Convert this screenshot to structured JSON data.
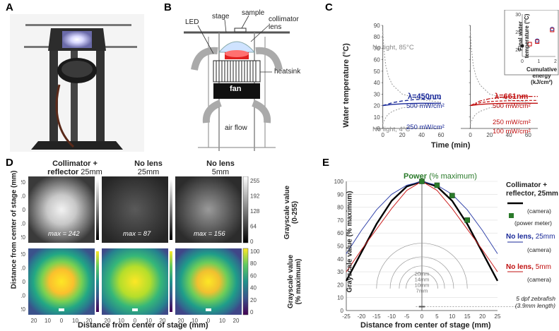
{
  "panels": {
    "A": "A",
    "B": "B",
    "C": "C",
    "D": "D",
    "E": "E"
  },
  "panelB": {
    "led": "LED",
    "stage": "stage",
    "sample": "sample",
    "collimator_l1": "collimator",
    "collimator_l2": "lens",
    "heatsink": "heatsink",
    "fan": "fan",
    "air_flow": "air flow"
  },
  "panelC": {
    "ylabel": "Water temperature (°C)",
    "xlabel": "Time (min)",
    "yticks": [
      "90",
      "80",
      "70",
      "60",
      "50",
      "40",
      "30",
      "20",
      "10",
      "0"
    ],
    "xticks": [
      "0",
      "20",
      "40",
      "60"
    ],
    "xticks_right": [
      "0",
      "20",
      "40",
      "60"
    ],
    "no_light_85": "No light, 85°C",
    "no_light_4": "No light, 4°C",
    "blue_lambda": "λ=450nm",
    "blue_500": "500 mW/cm²",
    "blue_250": "250 mW/cm²",
    "red_lambda": "λ=661nm",
    "red_500": "500 mW/cm²",
    "red_250": "250 mW/cm²",
    "red_100": "100 mW/cm²",
    "inset": {
      "ylabel_l1": "Final water",
      "ylabel_l2": "temperature (°C)",
      "xlabel_l1": "Cumulative",
      "xlabel_l2": "energy (kJ/cm²)",
      "yticks": [
        "30",
        "25",
        "20"
      ],
      "xticks": [
        "0",
        "1",
        "2"
      ]
    }
  },
  "panelD": {
    "col1_title_l1": "Collimator +",
    "col1_title_l2": "reflector",
    "col1_size": "25mm",
    "col2_title": "No lens",
    "col2_size": "25mm",
    "col3_title": "No lens",
    "col3_size": "5mm",
    "max1": "max = 242",
    "max2": "max = 87",
    "max3": "max = 156",
    "ylabel_l1": "Distance from center of stage (mm)",
    "xlabel": "Distance from center of stage (mm)",
    "yticks": [
      "20",
      "10",
      "0",
      "10",
      "20"
    ],
    "xticks": [
      "20",
      "10",
      "0",
      "10",
      "20"
    ],
    "cbar1_ticks": [
      "255",
      "192",
      "128",
      "64",
      "0"
    ],
    "cbar1_label_l1": "Grayscale value",
    "cbar1_label_l2": "(0-255)",
    "cbar2_ticks": [
      "100",
      "80",
      "60",
      "40",
      "20",
      "0"
    ],
    "cbar2_label_l1": "Grayscale value",
    "cbar2_label_l2": "(% maximum)"
  },
  "panelE": {
    "ylabel": "Grayscale value (% maximum)",
    "xlabel": "Distance from center of stage (mm)",
    "yticks": [
      "100",
      "90",
      "80",
      "70",
      "60",
      "50",
      "40",
      "30",
      "20",
      "10",
      "0"
    ],
    "xticks": [
      "-25",
      "-20",
      "-15",
      "-10",
      "-5",
      "0",
      "5",
      "10",
      "15",
      "20",
      "25"
    ],
    "power_title": "Power",
    "power_sub": "(% maximum)",
    "legend": {
      "g1_l1": "Collimator +",
      "g1_l2": "reflector, 25mm",
      "g1_camera": "(camera)",
      "g1_power": "(power meter)",
      "g2_title": "No lens,",
      "g2_size": "25mm",
      "g2_camera": "(camera)",
      "g3_title": "No lens,",
      "g3_size": "5mm",
      "g3_camera": "(camera)"
    },
    "rings": [
      "20mm",
      "14mm",
      "10mm",
      "7mm"
    ],
    "fish_l1": "5 dpf zebrafish",
    "fish_l2": "(3.9mm length)"
  },
  "chart_data": [
    {
      "type": "line",
      "title": "",
      "xlabel": "Time (min)",
      "ylabel": "Water temperature (°C)",
      "ylim": [
        0,
        90
      ],
      "xlim": [
        -10,
        60
      ],
      "series": [
        {
          "name": "λ=450nm 500 mW/cm²",
          "x": [
            0,
            10,
            20,
            30,
            40,
            50,
            60
          ],
          "y": [
            20,
            22.5,
            24,
            25,
            25.5,
            25.8,
            26
          ]
        },
        {
          "name": "λ=450nm 250 mW/cm²",
          "x": [
            0,
            10,
            20,
            30,
            40,
            50,
            60
          ],
          "y": [
            20,
            21,
            21.5,
            21.8,
            22,
            22,
            22
          ]
        },
        {
          "name": "No light, 85°C",
          "x": [
            0,
            1,
            3,
            6,
            10,
            20,
            40,
            60
          ],
          "y": [
            85,
            70,
            55,
            45,
            38,
            30,
            25,
            23
          ]
        },
        {
          "name": "No light, 4°C",
          "x": [
            0,
            2,
            5,
            10,
            20,
            40,
            60
          ],
          "y": [
            4,
            8,
            12,
            15,
            18,
            20,
            21
          ]
        }
      ]
    },
    {
      "type": "line",
      "xlabel": "Time (min)",
      "ylim": [
        0,
        90
      ],
      "xlim": [
        -10,
        70
      ],
      "series": [
        {
          "name": "λ=661nm 500 mW/cm²",
          "x": [
            0,
            10,
            20,
            30,
            40,
            50,
            60,
            70
          ],
          "y": [
            20,
            24,
            26,
            27,
            27.5,
            27.8,
            28,
            28
          ]
        },
        {
          "name": "λ=661nm 250 mW/cm²",
          "x": [
            0,
            10,
            20,
            30,
            40,
            50,
            60,
            70
          ],
          "y": [
            20,
            22.5,
            23.5,
            24,
            24.2,
            24.3,
            24.5,
            24.5
          ]
        },
        {
          "name": "λ=661nm 100 mW/cm²",
          "x": [
            0,
            10,
            20,
            30,
            40,
            50,
            60,
            70
          ],
          "y": [
            20,
            21,
            21.5,
            21.8,
            22,
            22,
            22,
            22
          ]
        }
      ]
    },
    {
      "type": "scatter",
      "xlabel": "Cumulative energy (kJ/cm²)",
      "ylabel": "Final water temperature (°C)",
      "ylim": [
        18,
        30
      ],
      "xlim": [
        0,
        2
      ],
      "series": [
        {
          "name": "",
          "x": [
            0
          ],
          "y": [
            21
          ],
          "color": "#222"
        },
        {
          "name": "",
          "x": [
            0.45
          ],
          "y": [
            21.5
          ],
          "color": "#c00"
        },
        {
          "name": "",
          "x": [
            0.9
          ],
          "y": [
            22.2
          ],
          "color": "#c00"
        },
        {
          "name": "",
          "x": [
            0.9
          ],
          "y": [
            22.5
          ],
          "color": "#339"
        },
        {
          "name": "",
          "x": [
            1.8
          ],
          "y": [
            25.5
          ],
          "color": "#c00"
        },
        {
          "name": "",
          "x": [
            1.8
          ],
          "y": [
            25.8
          ],
          "color": "#339"
        }
      ]
    },
    {
      "type": "line",
      "xlabel": "Distance from center of stage (mm)",
      "ylabel": "Grayscale value (% maximum)",
      "xlim": [
        -25,
        25
      ],
      "ylim": [
        0,
        100
      ],
      "series": [
        {
          "name": "Collimator + reflector, 25mm (camera)",
          "color": "#000",
          "x": [
            -25,
            -20,
            -15,
            -10,
            -5,
            0,
            5,
            10,
            15,
            20,
            25
          ],
          "y": [
            23,
            45,
            67,
            85,
            96,
            100,
            96,
            85,
            67,
            45,
            23
          ]
        },
        {
          "name": "No lens, 25mm (camera)",
          "color": "#3344aa",
          "x": [
            -25,
            -20,
            -15,
            -10,
            -5,
            0,
            5,
            10,
            15,
            20,
            25
          ],
          "y": [
            44,
            62,
            78,
            90,
            97,
            100,
            97,
            90,
            78,
            62,
            44
          ]
        },
        {
          "name": "No lens, 5mm (camera)",
          "color": "#cc2222",
          "x": [
            -25,
            -20,
            -15,
            -10,
            -5,
            0,
            5,
            10,
            15,
            20,
            25
          ],
          "y": [
            30,
            47,
            63,
            79,
            93,
            100,
            93,
            79,
            63,
            47,
            30
          ]
        },
        {
          "name": "(power meter)",
          "color": "#2a7a2a",
          "type": "scatter",
          "x": [
            0,
            5,
            10,
            15
          ],
          "y": [
            100,
            97,
            89,
            70
          ]
        }
      ]
    }
  ]
}
